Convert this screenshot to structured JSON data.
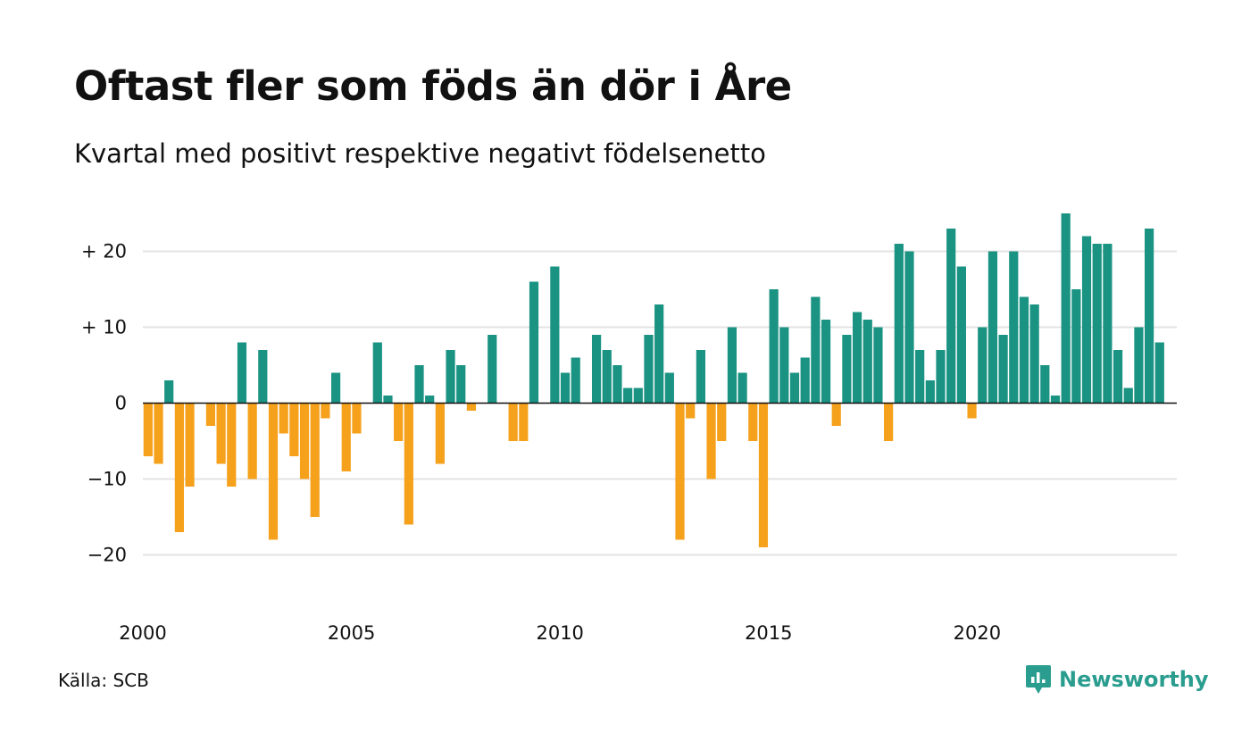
{
  "title": "Oftast fler som föds än dör i Åre",
  "subtitle": "Kvartal med positivt respektive negativt födelsenetto",
  "source": "Källa: SCB",
  "logo": {
    "text": "Newsworthy",
    "icon": "newsworthy-chart-bubble-icon"
  },
  "colors": {
    "positive": "#1a9383",
    "negative": "#f5a11c",
    "grid": "#e3e3e3",
    "axis": "#111111"
  },
  "chart_data": {
    "type": "bar",
    "title": "Oftast fler som föds än dör i Åre",
    "subtitle": "Kvartal med positivt respektive negativt födelsenetto",
    "xlabel": "",
    "ylabel": "",
    "x_start": 2000,
    "periods_per_year": 4,
    "x_ticks": [
      2000,
      2005,
      2010,
      2015,
      2020
    ],
    "x_tick_labels": [
      "2000",
      "2005",
      "2010",
      "2015",
      "2020"
    ],
    "y_ticks": [
      20,
      10,
      0,
      -10,
      -20
    ],
    "y_tick_labels": [
      "+ 20",
      "+ 10",
      "0",
      "−10",
      "−20"
    ],
    "ylim": [
      -27,
      27
    ],
    "grid": true,
    "legend": "none",
    "values": [
      -7,
      -8,
      3,
      -17,
      -11,
      0,
      -3,
      -8,
      -11,
      8,
      -10,
      7,
      -18,
      -4,
      -7,
      -10,
      -15,
      -2,
      4,
      -9,
      -4,
      0,
      8,
      1,
      -5,
      -16,
      5,
      1,
      -8,
      7,
      5,
      -1,
      0,
      9,
      0,
      -5,
      -5,
      16,
      0,
      18,
      4,
      6,
      0,
      9,
      7,
      5,
      2,
      2,
      9,
      13,
      4,
      -18,
      -2,
      7,
      -10,
      -5,
      10,
      4,
      -5,
      -19,
      15,
      10,
      4,
      6,
      14,
      11,
      -3,
      9,
      12,
      11,
      10,
      -5,
      21,
      20,
      7,
      3,
      7,
      23,
      18,
      -2,
      10,
      20,
      9,
      20,
      14,
      13,
      5,
      1,
      25,
      15,
      22,
      21,
      21,
      7,
      2,
      10,
      23,
      8
    ]
  }
}
